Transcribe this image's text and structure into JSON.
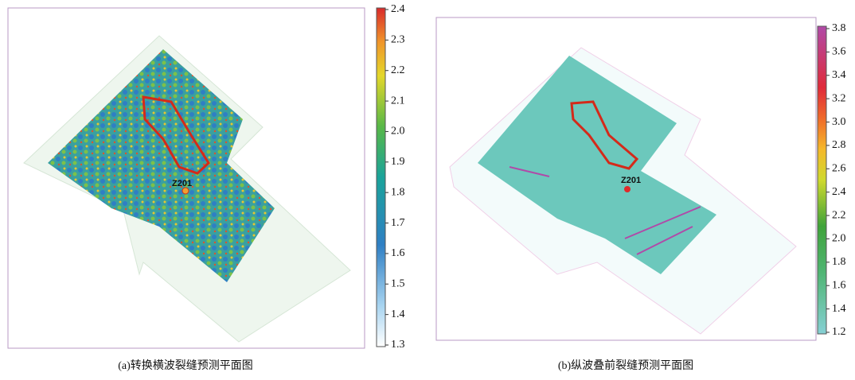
{
  "panels": [
    {
      "caption": "(a)转换横波裂缝预测平面图",
      "well_label": "Z201",
      "colorbar": {
        "lim": [
          1.3,
          2.4
        ],
        "ticks": [
          1.3,
          1.4,
          1.5,
          1.6,
          1.7,
          1.8,
          1.9,
          {
            "value": 2,
            "label": "2.0"
          },
          2.1,
          2.2,
          2.3,
          2.4
        ]
      }
    },
    {
      "caption": "(b)纵波叠前裂缝预测平面图",
      "well_label": "Z201",
      "colorbar": {
        "lim": [
          1.2,
          3.8
        ],
        "ticks": [
          1.2,
          1.4,
          1.6,
          1.8,
          {
            "value": 2,
            "label": "2.0"
          },
          2.2,
          2.4,
          2.6,
          2.8,
          {
            "value": 3,
            "label": "3.0"
          },
          3.2,
          3.4,
          3.6,
          3.8
        ]
      }
    }
  ]
}
